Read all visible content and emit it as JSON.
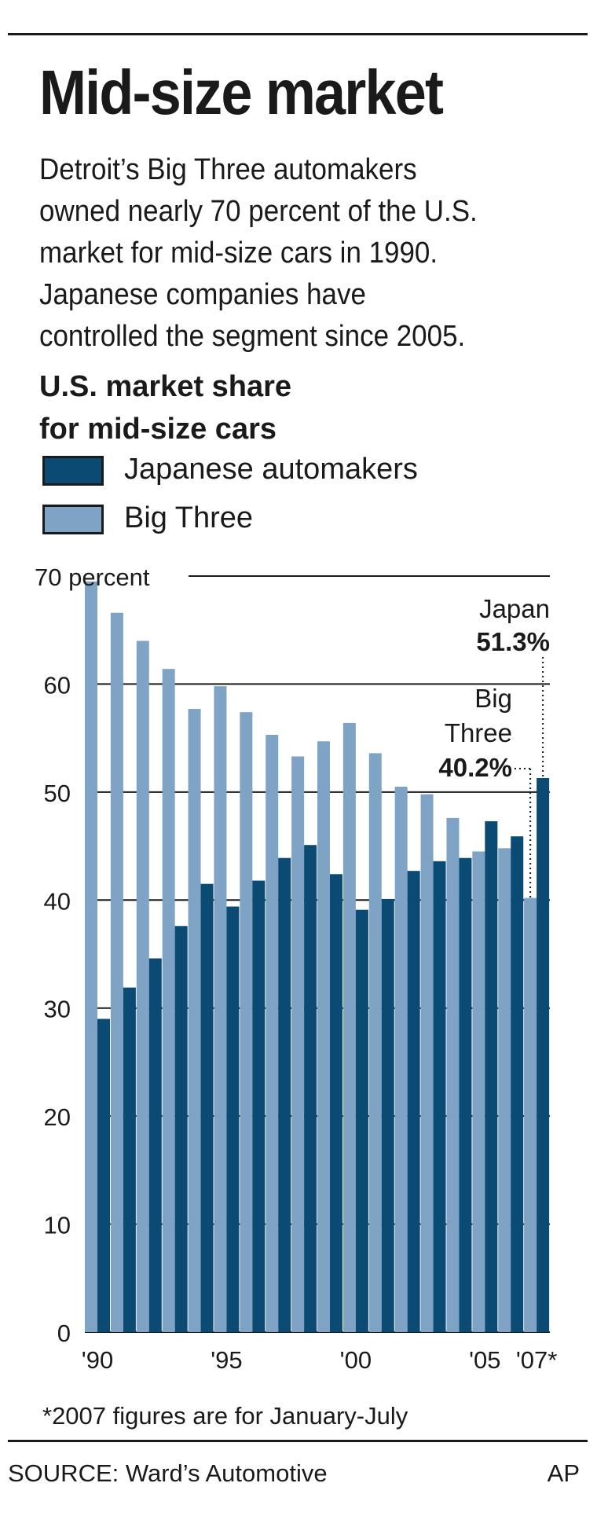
{
  "header": {
    "title": "Mid-size market",
    "intro_lines": [
      "Detroit’s Big Three automakers",
      "owned nearly 70 percent of the U.S.",
      "market for mid-size cars in 1990.",
      "Japanese companies have",
      "controlled the segment since 2005."
    ],
    "subtitle_lines": [
      "U.S. market share",
      "for mid-size cars"
    ]
  },
  "legend": [
    {
      "label": "Japanese automakers",
      "color": "#0b4a73"
    },
    {
      "label": "Big Three",
      "color": "#7fa3c4"
    }
  ],
  "chart_data": {
    "type": "bar",
    "title": "U.S. market share for mid-size cars",
    "y_unit_label": "70 percent",
    "ylim": [
      0,
      70
    ],
    "yticks": [
      0,
      10,
      20,
      30,
      40,
      50,
      60,
      70
    ],
    "ytick_labels": [
      "0",
      "10",
      "20",
      "30",
      "40",
      "50",
      "60",
      "70"
    ],
    "categories": [
      "1990",
      "1991",
      "1992",
      "1993",
      "1994",
      "1995",
      "1996",
      "1997",
      "1998",
      "1999",
      "2000",
      "2001",
      "2002",
      "2003",
      "2004",
      "2005",
      "2006",
      "2007"
    ],
    "xtick_labels": [
      {
        "category": "1990",
        "label": "'90"
      },
      {
        "category": "1995",
        "label": "'95"
      },
      {
        "category": "2000",
        "label": "'00"
      },
      {
        "category": "2005",
        "label": "'05"
      },
      {
        "category": "2007",
        "label": "'07*"
      }
    ],
    "series": [
      {
        "name": "Big Three",
        "color": "#7fa3c4",
        "values": [
          69.5,
          66.6,
          64.0,
          61.4,
          57.7,
          59.8,
          57.4,
          55.3,
          53.3,
          54.7,
          56.4,
          53.6,
          50.5,
          49.8,
          47.6,
          44.5,
          44.8,
          40.2
        ]
      },
      {
        "name": "Japanese automakers",
        "color": "#0b4a73",
        "values": [
          29.0,
          31.9,
          34.6,
          37.6,
          41.5,
          39.4,
          41.8,
          43.9,
          45.1,
          42.4,
          39.1,
          40.1,
          42.7,
          43.6,
          43.9,
          47.3,
          45.9,
          51.3
        ]
      }
    ],
    "annotations": [
      {
        "lines": [
          "Japan",
          "51.3%"
        ],
        "series": "Japanese automakers",
        "category": "2007"
      },
      {
        "lines": [
          "Big",
          "Three",
          "40.2%"
        ],
        "series": "Big Three",
        "category": "2007"
      }
    ],
    "grid": true
  },
  "footnote": "*2007 figures are for January-July",
  "source": "SOURCE: Ward’s Automotive",
  "credit": "AP"
}
